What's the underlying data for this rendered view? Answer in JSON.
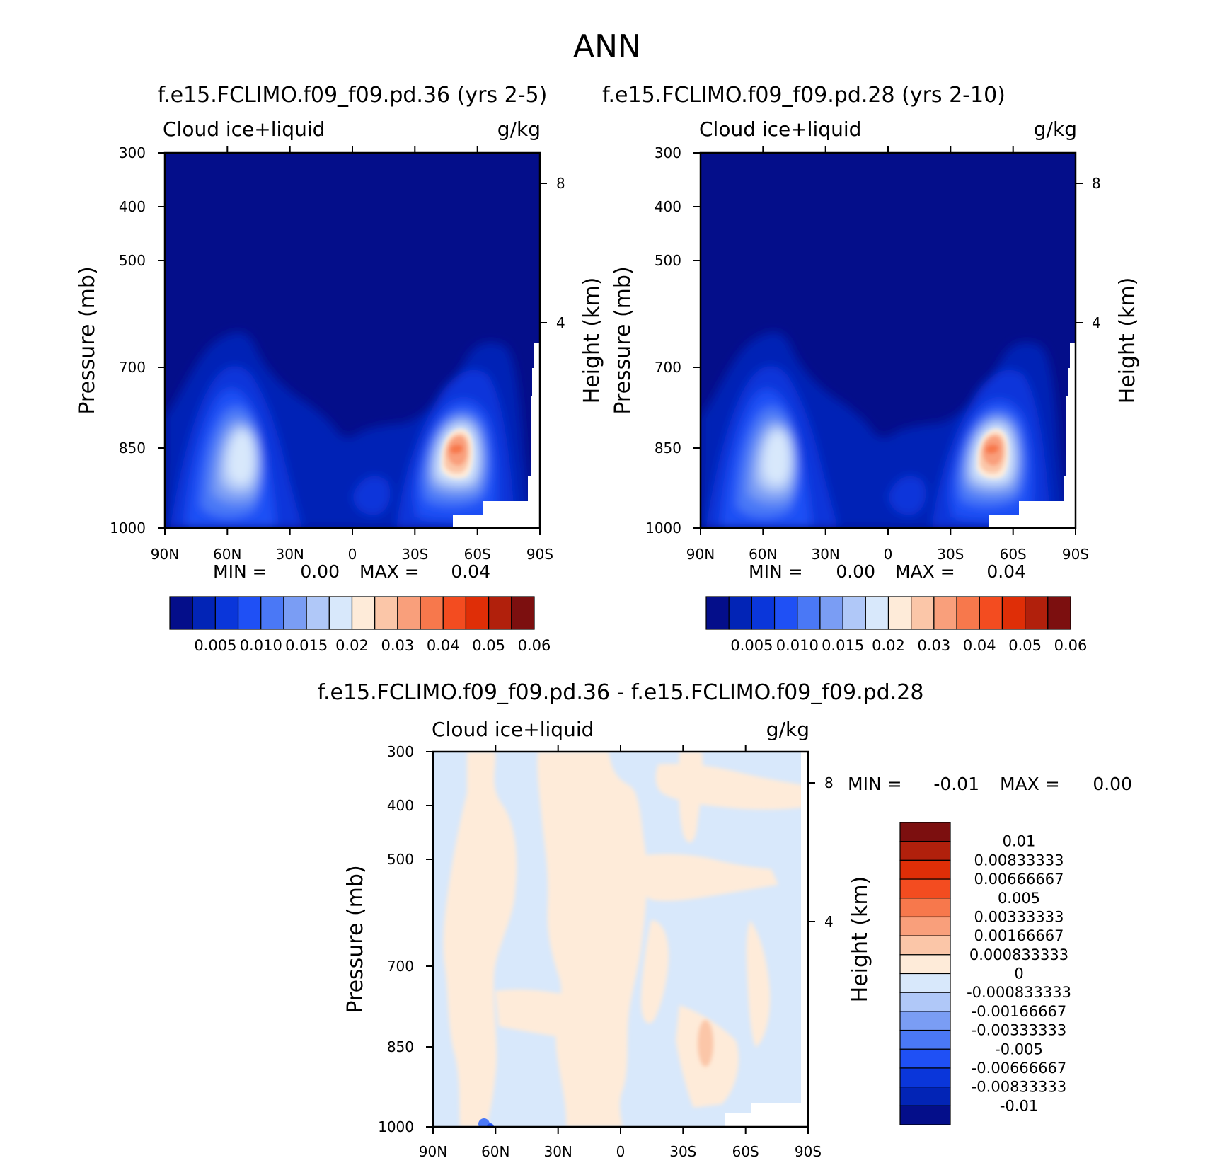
{
  "main_title": "ANN",
  "chart_data": [
    {
      "type": "contour",
      "title": "f.e15.FCLIMO.f09_f09.pd.36 (yrs 2-5)",
      "variable": "Cloud ice+liquid",
      "units": "g/kg",
      "ylabel": "Pressure (mb)",
      "ylabel_right": "Height (km)",
      "xticks": [
        "90N",
        "60N",
        "30N",
        "0",
        "30S",
        "60S",
        "90S"
      ],
      "yticks": [
        "300",
        "400",
        "500",
        "700",
        "850",
        "1000"
      ],
      "yticks_right": [
        "8",
        "4"
      ],
      "ylim": [
        1000,
        300
      ],
      "min_label": "MIN =",
      "min_value": "0.00",
      "max_label": "MAX =",
      "max_value": "0.04",
      "colorbar_colors": [
        "#040e8a",
        "#0224b6",
        "#0a36da",
        "#1f50f5",
        "#4a78f6",
        "#7a9df4",
        "#b0c8f8",
        "#d8e8fb",
        "#feebd9",
        "#fbc6a8",
        "#f99f7b",
        "#f7784c",
        "#f34c20",
        "#df2e07",
        "#b1200c",
        "#7c0f0f"
      ],
      "colorbar_labels": [
        "0.005",
        "0.010",
        "0.015",
        "0.02",
        "0.03",
        "0.04",
        "0.05",
        "0.06"
      ],
      "features": [
        {
          "lat": 55,
          "pressure": 850,
          "peak": 0.02
        },
        {
          "lat": -52,
          "pressure": 850,
          "peak": 0.04
        }
      ]
    },
    {
      "type": "contour",
      "title": "f.e15.FCLIMO.f09_f09.pd.28 (yrs 2-10)",
      "variable": "Cloud ice+liquid",
      "units": "g/kg",
      "ylabel": "Pressure (mb)",
      "ylabel_right": "Height (km)",
      "xticks": [
        "90N",
        "60N",
        "30N",
        "0",
        "30S",
        "60S",
        "90S"
      ],
      "yticks": [
        "300",
        "400",
        "500",
        "700",
        "850",
        "1000"
      ],
      "yticks_right": [
        "8",
        "4"
      ],
      "ylim": [
        1000,
        300
      ],
      "min_label": "MIN =",
      "min_value": "0.00",
      "max_label": "MAX =",
      "max_value": "0.04",
      "colorbar_colors": [
        "#040e8a",
        "#0224b6",
        "#0a36da",
        "#1f50f5",
        "#4a78f6",
        "#7a9df4",
        "#b0c8f8",
        "#d8e8fb",
        "#feebd9",
        "#fbc6a8",
        "#f99f7b",
        "#f7784c",
        "#f34c20",
        "#df2e07",
        "#b1200c",
        "#7c0f0f"
      ],
      "colorbar_labels": [
        "0.005",
        "0.010",
        "0.015",
        "0.02",
        "0.03",
        "0.04",
        "0.05",
        "0.06"
      ],
      "features": [
        {
          "lat": 55,
          "pressure": 850,
          "peak": 0.02
        },
        {
          "lat": -52,
          "pressure": 850,
          "peak": 0.04
        }
      ]
    },
    {
      "type": "contour",
      "title": "f.e15.FCLIMO.f09_f09.pd.36 - f.e15.FCLIMO.f09_f09.pd.28",
      "variable": "Cloud ice+liquid",
      "units": "g/kg",
      "ylabel": "Pressure (mb)",
      "ylabel_right": "Height (km)",
      "xticks": [
        "90N",
        "60N",
        "30N",
        "0",
        "30S",
        "60S",
        "90S"
      ],
      "yticks": [
        "300",
        "400",
        "500",
        "700",
        "850",
        "1000"
      ],
      "yticks_right": [
        "8",
        "4"
      ],
      "ylim": [
        1000,
        300
      ],
      "min_label": "MIN =",
      "min_value": "-0.01",
      "max_label": "MAX =",
      "max_value": "0.00",
      "colorbar_colors": [
        "#7c0f0f",
        "#b1200c",
        "#df2e07",
        "#f34c20",
        "#f7784c",
        "#f99f7b",
        "#fbc6a8",
        "#feebd9",
        "#d8e8fb",
        "#b0c8f8",
        "#7a9df4",
        "#4a78f6",
        "#1f50f5",
        "#0a36da",
        "#0224b6",
        "#040e8a"
      ],
      "colorbar_labels": [
        "0.01",
        "0.00833333",
        "0.00666667",
        "0.005",
        "0.00333333",
        "0.00166667",
        "0.000833333",
        "0",
        "-0.000833333",
        "-0.00166667",
        "-0.00333333",
        "-0.005",
        "-0.00666667",
        "-0.00833333",
        "-0.01"
      ]
    }
  ]
}
